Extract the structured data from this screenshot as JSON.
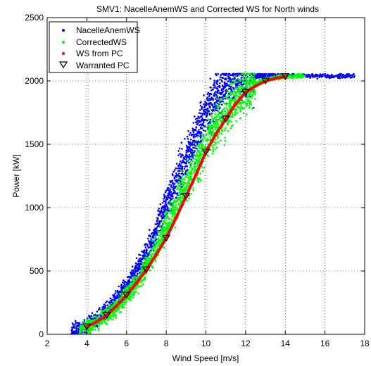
{
  "chart_data": {
    "type": "scatter",
    "title": "SMV1: NacelleAnemWS and Corrected WS for North winds",
    "xlabel": "Wind Speed [m/s]",
    "ylabel": "Power [kW]",
    "xlim": [
      2,
      18
    ],
    "ylim": [
      0,
      2500
    ],
    "xticks": [
      2,
      4,
      6,
      8,
      10,
      12,
      14,
      16,
      18
    ],
    "yticks": [
      0,
      500,
      1000,
      1500,
      2000,
      2500
    ],
    "x_tick_labels": [
      "2",
      "4",
      "6",
      "8",
      "10",
      "12",
      "14",
      "16",
      "18"
    ],
    "y_tick_labels": [
      "0",
      "500",
      "1000",
      "1500",
      "2000",
      "2500"
    ],
    "grid": true,
    "legend_position": "top-left",
    "series": [
      {
        "name": "NacelleAnemWS",
        "marker": "dot",
        "color": "#0000ff",
        "x": [
          3.2,
          3.6,
          4.0,
          4.5,
          5.0,
          5.5,
          6.0,
          6.5,
          7.0,
          7.5,
          8.0,
          8.5,
          9.0,
          9.5,
          10.0,
          10.5,
          11.0,
          11.5,
          12.0,
          12.5,
          13.0,
          13.5,
          14.0,
          14.5,
          15.5,
          16.5,
          17.5
        ],
        "y": [
          30,
          45,
          75,
          125,
          185,
          270,
          370,
          490,
          640,
          820,
          1010,
          1210,
          1400,
          1580,
          1740,
          1860,
          1950,
          2000,
          2030,
          2040,
          2045,
          2045,
          2045,
          2045,
          2040,
          2040,
          2040
        ]
      },
      {
        "name": "CorrectedWS",
        "marker": "dot",
        "color": "#00ff00",
        "x": [
          3.6,
          4.0,
          4.5,
          5.0,
          5.5,
          6.0,
          6.5,
          7.0,
          7.5,
          8.0,
          8.5,
          9.0,
          9.5,
          10.0,
          10.5,
          11.0,
          11.5,
          12.0,
          12.5,
          13.0,
          13.5,
          14.0,
          14.5,
          15.0
        ],
        "y": [
          30,
          60,
          100,
          150,
          215,
          300,
          410,
          540,
          690,
          850,
          1020,
          1190,
          1350,
          1500,
          1640,
          1760,
          1860,
          1930,
          1980,
          2010,
          2025,
          2035,
          2040,
          2040
        ]
      },
      {
        "name": "WS from PC",
        "marker": "dot",
        "color": "#ff0000",
        "x": [
          4,
          4.5,
          5,
          5.5,
          6,
          6.5,
          7,
          7.5,
          8,
          8.5,
          9,
          9.5,
          10,
          10.5,
          11,
          11.5,
          12,
          12.5,
          13,
          13.5,
          14
        ],
        "y": [
          60,
          100,
          150,
          225,
          310,
          405,
          510,
          630,
          760,
          920,
          1090,
          1260,
          1440,
          1580,
          1700,
          1820,
          1910,
          1960,
          2000,
          2020,
          2035
        ]
      },
      {
        "name": "Warranted PC",
        "marker": "triangle-down",
        "color": "#000000",
        "x": [
          4,
          5,
          6,
          7,
          8,
          9,
          10,
          11,
          12,
          13,
          14
        ],
        "y": [
          60,
          150,
          310,
          510,
          760,
          1090,
          1440,
          1700,
          1910,
          2000,
          2035
        ]
      }
    ]
  }
}
